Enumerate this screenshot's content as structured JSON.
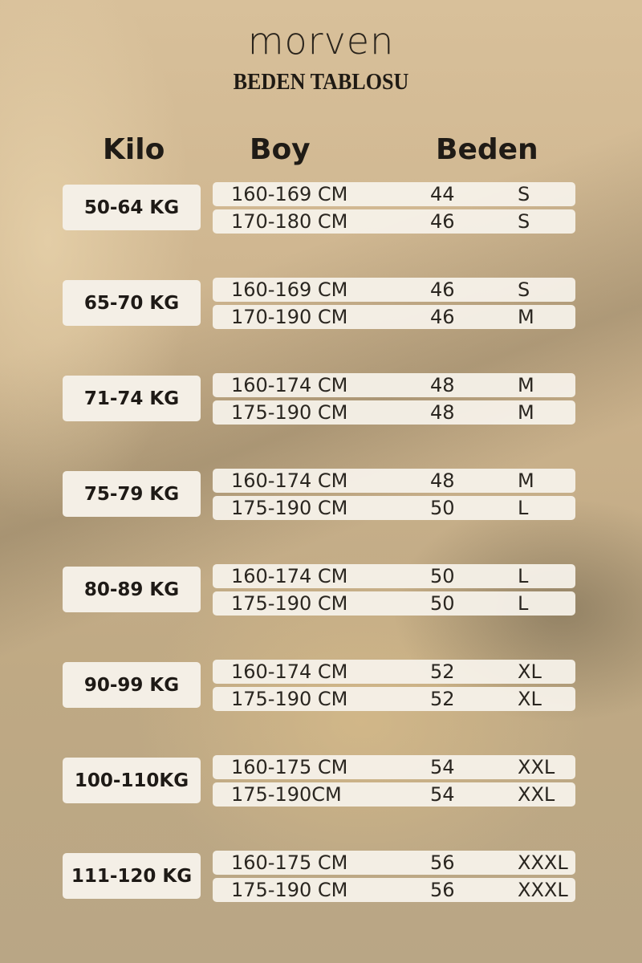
{
  "brand": "morven",
  "title": "BEDEN TABLOSU",
  "headers": {
    "kilo": "Kilo",
    "boy": "Boy",
    "beden": "Beden"
  },
  "groups": [
    {
      "kilo": "50-64 KG",
      "rows": [
        {
          "boy": "160-169 CM",
          "num": "44",
          "size": "S"
        },
        {
          "boy": "170-180 CM",
          "num": "46",
          "size": "S"
        }
      ]
    },
    {
      "kilo": "65-70 KG",
      "rows": [
        {
          "boy": "160-169 CM",
          "num": "46",
          "size": "S"
        },
        {
          "boy": "170-190 CM",
          "num": "46",
          "size": "M"
        }
      ]
    },
    {
      "kilo": "71-74 KG",
      "rows": [
        {
          "boy": "160-174 CM",
          "num": "48",
          "size": "M"
        },
        {
          "boy": "175-190 CM",
          "num": "48",
          "size": "M"
        }
      ]
    },
    {
      "kilo": "75-79 KG",
      "rows": [
        {
          "boy": "160-174 CM",
          "num": "48",
          "size": "M"
        },
        {
          "boy": "175-190 CM",
          "num": "50",
          "size": "L"
        }
      ]
    },
    {
      "kilo": "80-89 KG",
      "rows": [
        {
          "boy": "160-174 CM",
          "num": "50",
          "size": "L"
        },
        {
          "boy": "175-190 CM",
          "num": "50",
          "size": "L"
        }
      ]
    },
    {
      "kilo": "90-99 KG",
      "rows": [
        {
          "boy": "160-174 CM",
          "num": "52",
          "size": "XL"
        },
        {
          "boy": "175-190 CM",
          "num": "52",
          "size": "XL"
        }
      ]
    },
    {
      "kilo": "100-110KG",
      "rows": [
        {
          "boy": "160-175 CM",
          "num": "54",
          "size": "XXL"
        },
        {
          "boy": "175-190CM",
          "num": "54",
          "size": "XXL"
        }
      ]
    },
    {
      "kilo": "111-120 KG",
      "rows": [
        {
          "boy": "160-175 CM",
          "num": "56",
          "size": "XXXL"
        },
        {
          "boy": "175-190 CM",
          "num": "56",
          "size": "XXXL"
        }
      ]
    }
  ]
}
